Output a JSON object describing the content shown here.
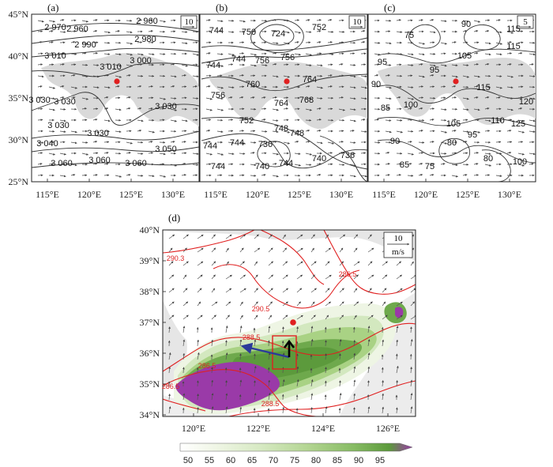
{
  "panels_top": [
    {
      "id": "a",
      "label": "(a)",
      "ref_vector": "10",
      "contour_labels": [
        "2 970",
        "2 960",
        "2 960",
        "2 980",
        "2 990",
        "3 010",
        "3 000",
        "3 010",
        "3 030",
        "3 030",
        "3 030",
        "3 030",
        "3 030",
        "3 040",
        "3 050",
        "3 060",
        "3 060",
        "3 060"
      ]
    },
    {
      "id": "b",
      "label": "(b)",
      "ref_vector": "10",
      "contour_labels": [
        "744",
        "750",
        "724",
        "752",
        "744",
        "756",
        "756",
        "744",
        "760",
        "764",
        "756",
        "764",
        "768",
        "752",
        "748",
        "744",
        "744",
        "736",
        "748",
        "740",
        "736",
        "744",
        "740",
        "744"
      ]
    },
    {
      "id": "c",
      "label": "(c)",
      "ref_vector": "5",
      "contour_labels": [
        "115",
        "75",
        "90",
        "115",
        "105",
        "95",
        "95",
        "90",
        "115",
        "85",
        "100",
        "120",
        "125",
        "110",
        "105",
        "95",
        "90",
        "80",
        "85",
        "75",
        "80",
        "100"
      ]
    }
  ],
  "top_axes": {
    "y_ticks": [
      "45°N",
      "40°N",
      "35°N",
      "30°N",
      "25°N"
    ],
    "x_ticks": [
      "115°E",
      "120°E",
      "125°E",
      "130°E"
    ]
  },
  "panel_d": {
    "label": "(d)",
    "ref_vector_value": "10",
    "ref_vector_unit": "m/s",
    "y_ticks": [
      "40°N",
      "39°N",
      "38°N",
      "37°N",
      "36°N",
      "35°N",
      "34°N"
    ],
    "x_ticks": [
      "120°E",
      "122°E",
      "124°E",
      "126°E"
    ],
    "contour_labels": [
      "290.3",
      "286.5",
      "290.5",
      "288.5",
      "286.5",
      "286.5",
      "288.5"
    ],
    "colorbar_labels": [
      "50",
      "55",
      "60",
      "65",
      "70",
      "75",
      "80",
      "85",
      "90",
      "95"
    ],
    "colors": {
      "contour": "#e02020",
      "box": "#e02020",
      "track_arrow": "#2b3a9a",
      "motion_arrow": "#000000",
      "station": "#e02020",
      "shade_low": "#f2f7ea",
      "shade_high": "#5c9a3c",
      "shade_top": "#9a3aa8"
    }
  }
}
